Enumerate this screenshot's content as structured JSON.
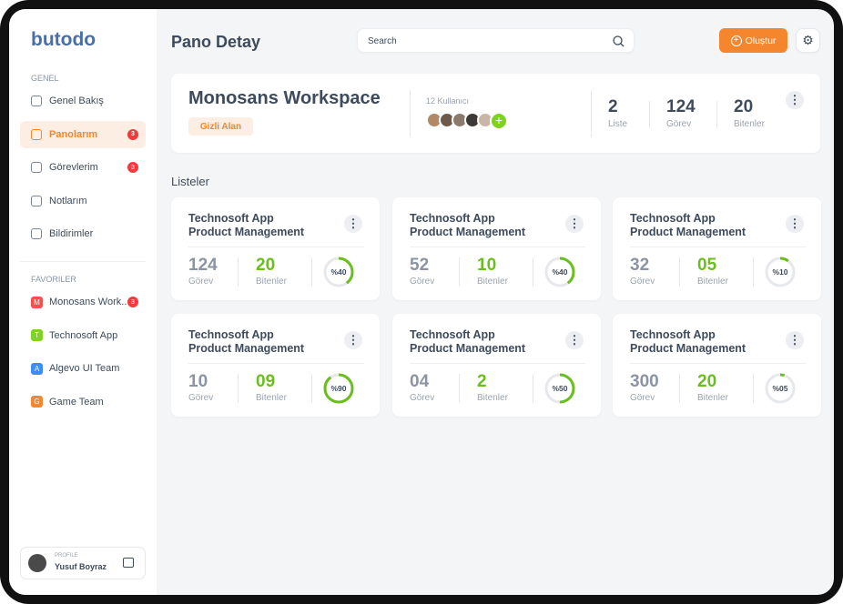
{
  "sidebar": {
    "logo": "butodo",
    "general_heading": "GENEL",
    "general_items": [
      {
        "label": "Genel Bakış"
      },
      {
        "label": "Panolarım",
        "badge": "3",
        "active": true
      },
      {
        "label": "Görevlerim",
        "badge": "3"
      },
      {
        "label": "Notlarım"
      },
      {
        "label": "Bildirimler"
      }
    ],
    "favorites_heading": "FAVORILER",
    "favorites": [
      {
        "initial": "M",
        "label": "Monosans Work..",
        "color": "#ef5350",
        "badge": "3"
      },
      {
        "initial": "T",
        "label": "Technosoft App",
        "color": "#7ed321"
      },
      {
        "initial": "A",
        "label": "Algevo UI Team",
        "color": "#3d8bfd"
      },
      {
        "initial": "G",
        "label": "Game Team",
        "color": "#f5862e"
      }
    ],
    "profile": {
      "caption": "PROFILE",
      "name": "Yusuf Boyraz"
    }
  },
  "header": {
    "title": "Pano Detay",
    "search_placeholder": "Search",
    "create_button": "Oluştur"
  },
  "workspace": {
    "title": "Monosans Workspace",
    "tag": "Gizli Alan",
    "users": "12 Kullanıcı",
    "stats": [
      {
        "value": "2",
        "label": "Liste"
      },
      {
        "value": "124",
        "label": "Görev"
      },
      {
        "value": "20",
        "label": "Bitenler"
      }
    ]
  },
  "lists": {
    "heading": "Listeler",
    "cards": [
      {
        "title": [
          "Technosoft App",
          "Product Management"
        ],
        "tasks": "124",
        "tasks_label": "Görev",
        "done": "20",
        "done_label": "Bitenler",
        "progress": {
          "value": 40,
          "label": "%40"
        }
      },
      {
        "title": [
          "Technosoft App",
          "Product Management"
        ],
        "tasks": "52",
        "tasks_label": "Görev",
        "done": "10",
        "done_label": "Bitenler",
        "progress": {
          "value": 40,
          "label": "%40"
        }
      },
      {
        "title": [
          "Technosoft App",
          "Product Management"
        ],
        "tasks": "32",
        "tasks_label": "Görev",
        "done": "05",
        "done_label": "Bitenler",
        "progress": {
          "value": 10,
          "label": "%10"
        }
      },
      {
        "title": [
          "Technosoft App",
          "Product Management"
        ],
        "tasks": "10",
        "tasks_label": "Görev",
        "done": "09",
        "done_label": "Bitenler",
        "progress": {
          "value": 90,
          "label": "%90"
        }
      },
      {
        "title": [
          "Technosoft App",
          "Product Management"
        ],
        "tasks": "04",
        "tasks_label": "Görev",
        "done": "2",
        "done_label": "Bitenler",
        "progress": {
          "value": 50,
          "label": "%50"
        }
      },
      {
        "title": [
          "Technosoft App",
          "Product Management"
        ],
        "tasks": "300",
        "tasks_label": "Görev",
        "done": "20",
        "done_label": "Bitenler",
        "progress": {
          "value": 5,
          "label": "%05"
        }
      }
    ]
  }
}
